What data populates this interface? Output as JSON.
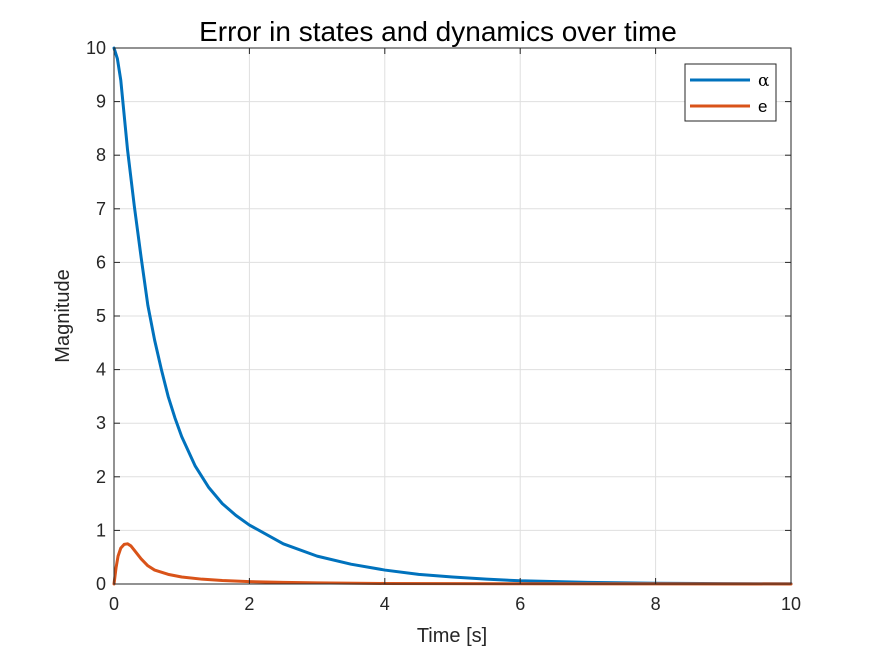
{
  "chart_data": {
    "type": "line",
    "title": "Error in states and dynamics over time",
    "xlabel": "Time [s]",
    "ylabel": "Magnitude",
    "xlim": [
      0,
      10
    ],
    "ylim": [
      0,
      10
    ],
    "xticks": [
      0,
      2,
      4,
      6,
      8,
      10
    ],
    "yticks": [
      0,
      1,
      2,
      3,
      4,
      5,
      6,
      7,
      8,
      9,
      10
    ],
    "grid": true,
    "legend_position": "top-right",
    "series": [
      {
        "name": "α",
        "color": "#0072BD",
        "x": [
          0,
          0.05,
          0.1,
          0.2,
          0.3,
          0.4,
          0.5,
          0.6,
          0.7,
          0.8,
          0.9,
          1.0,
          1.2,
          1.4,
          1.6,
          1.8,
          2.0,
          2.5,
          3.0,
          3.5,
          4.0,
          4.5,
          5.0,
          5.5,
          6.0,
          7.0,
          8.0,
          9.0,
          10.0
        ],
        "y": [
          10.0,
          9.8,
          9.4,
          8.1,
          7.05,
          6.1,
          5.2,
          4.55,
          4.0,
          3.5,
          3.1,
          2.75,
          2.2,
          1.8,
          1.5,
          1.28,
          1.1,
          0.75,
          0.52,
          0.37,
          0.26,
          0.18,
          0.13,
          0.09,
          0.06,
          0.03,
          0.015,
          0.008,
          0.004
        ]
      },
      {
        "name": "e",
        "color": "#D95319",
        "x": [
          0,
          0.03,
          0.06,
          0.1,
          0.15,
          0.2,
          0.25,
          0.3,
          0.4,
          0.5,
          0.6,
          0.8,
          1.0,
          1.3,
          1.6,
          2.0,
          2.5,
          3.0,
          4.0,
          5.0,
          6.0,
          8.0,
          10.0
        ],
        "y": [
          0.0,
          0.3,
          0.52,
          0.67,
          0.74,
          0.75,
          0.71,
          0.63,
          0.47,
          0.34,
          0.26,
          0.18,
          0.13,
          0.09,
          0.065,
          0.045,
          0.03,
          0.02,
          0.01,
          0.006,
          0.004,
          0.002,
          0.001
        ]
      }
    ]
  },
  "colors": {
    "grid": "#dfdfdf",
    "axis": "#262626",
    "legend_border": "#262626"
  }
}
